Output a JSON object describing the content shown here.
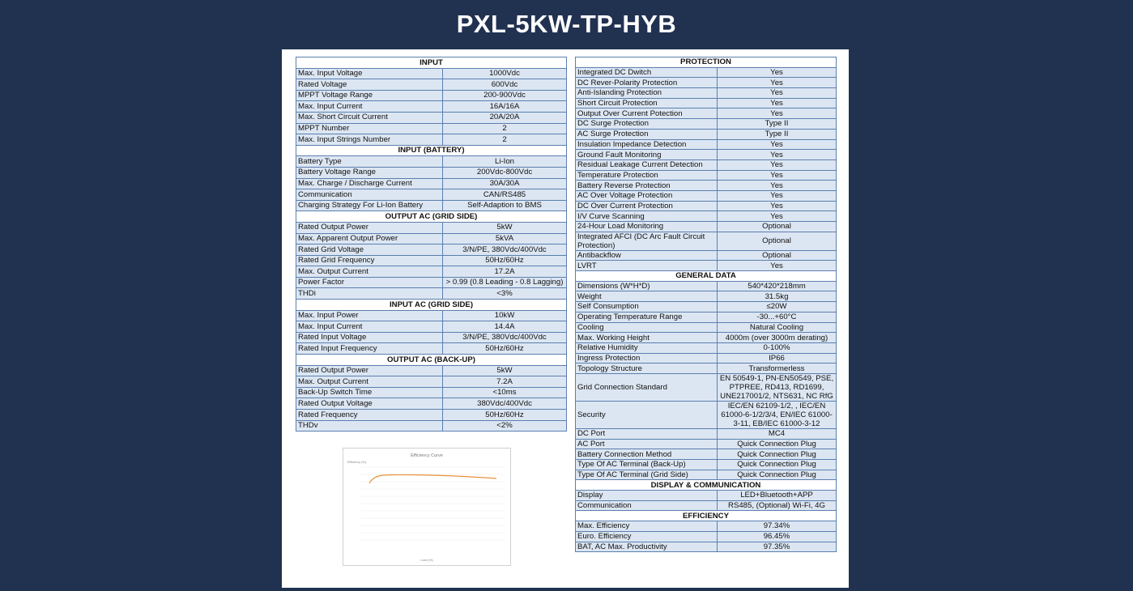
{
  "header": {
    "title": "PXL-5KW-TP-HYB"
  },
  "left_sections": [
    {
      "title": "INPUT",
      "rows": [
        [
          "Max. Input Voltage",
          "1000Vdc"
        ],
        [
          "Rated Voltage",
          "600Vdc"
        ],
        [
          "MPPT Voltage Range",
          "200-900Vdc"
        ],
        [
          "Max. Input Current",
          "16A/16A"
        ],
        [
          "Max. Short Circuit Current",
          "20A/20A"
        ],
        [
          "MPPT Number",
          "2"
        ],
        [
          "Max. Input Strings Number",
          "2"
        ]
      ]
    },
    {
      "title": "INPUT (BATTERY)",
      "rows": [
        [
          "Battery Type",
          "Li-Ion"
        ],
        [
          "Battery Voltage Range",
          "200Vdc-800Vdc"
        ],
        [
          "Max. Charge / Discharge Current",
          "30A/30A"
        ],
        [
          "Communication",
          "CAN/RS485"
        ],
        [
          "Charging Strategy For Li-Ion Battery",
          "Self-Adaption to BMS"
        ]
      ]
    },
    {
      "title": "OUTPUT AC (GRID SIDE)",
      "rows": [
        [
          "Rated Output Power",
          "5kW"
        ],
        [
          "Max. Apparent Output Power",
          "5kVA"
        ],
        [
          "Rated Grid Voltage",
          "3/N/PE, 380Vdc/400Vdc"
        ],
        [
          "Rated Grid Frequency",
          "50Hz/60Hz"
        ],
        [
          "Max. Output Current",
          "17.2A"
        ],
        [
          "Power Factor",
          "> 0.99 (0.8 Leading - 0.8 Lagging)"
        ],
        [
          "THDi",
          "<3%"
        ]
      ]
    },
    {
      "title": "INPUT AC (GRID SIDE)",
      "rows": [
        [
          "Max. Input Power",
          "10kW"
        ],
        [
          "Max. Input Current",
          "14.4A"
        ],
        [
          "Rated Input Voltage",
          "3/N/PE, 380Vdc/400Vdc"
        ],
        [
          "Rated Input Frequency",
          "50Hz/60Hz"
        ]
      ]
    },
    {
      "title": "OUTPUT AC (BACK-UP)",
      "rows": [
        [
          "Rated Output Power",
          "5kW"
        ],
        [
          "Max. Output Current",
          "7.2A"
        ],
        [
          "Back-Up Switch Time",
          "<10ms"
        ],
        [
          "Rated Output Voltage",
          "380Vdc/400Vdc"
        ],
        [
          "Rated Frequency",
          "50Hz/60Hz"
        ],
        [
          "THDv",
          "<2%"
        ]
      ]
    }
  ],
  "right_sections": [
    {
      "title": "PROTECTION",
      "rows": [
        [
          "Integrated DC Dwitch",
          "Yes"
        ],
        [
          "DC Rever-Polarity Protection",
          "Yes"
        ],
        [
          "Anti-Islanding Protection",
          "Yes"
        ],
        [
          "Short Circuit Protection",
          "Yes"
        ],
        [
          "Output Over Current Potection",
          "Yes"
        ],
        [
          "DC Surge Protection",
          "Type II"
        ],
        [
          "AC Surge Protection",
          "Type II"
        ],
        [
          "Insulation Impedance Detection",
          "Yes"
        ],
        [
          "Ground Fault Monitoring",
          "Yes"
        ],
        [
          "Residual Leakage Current Detection",
          "Yes"
        ],
        [
          "Temperature Protection",
          "Yes"
        ],
        [
          "Battery Reverse Protection",
          "Yes"
        ],
        [
          "AC Over Voltage Protection",
          "Yes"
        ],
        [
          "DC Over Current Protection",
          "Yes"
        ],
        [
          "I/V Curve Scanning",
          "Yes"
        ],
        [
          "24-Hour Load Monitoring",
          "Optional"
        ],
        [
          "Integrated AFCI (DC Arc Fault Circuit Protection)",
          "Optional"
        ],
        [
          "Antibackflow",
          "Optional"
        ],
        [
          "LVRT",
          "Yes"
        ]
      ]
    },
    {
      "title": "GENERAL DATA",
      "rows": [
        [
          "Dimensions (W*H*D)",
          "540*420*218mm"
        ],
        [
          "Weight",
          "31.5kg"
        ],
        [
          "Self Consumption",
          "≤20W"
        ],
        [
          "Operating Temperature Range",
          "-30...+60°C"
        ],
        [
          "Cooling",
          "Natural Cooling"
        ],
        [
          "Max. Working Height",
          "4000m (over 3000m derating)"
        ],
        [
          "Relative Humidity",
          "0-100%"
        ],
        [
          "Ingress Protection",
          "IP66"
        ],
        [
          "Topology Structure",
          "Transformerless"
        ],
        [
          "Grid Connection Standard",
          "EN 50549-1, PN-EN50549, PSE, PTPREE, RD413, RD1699, UNE217001/2, NTS631, NC RfG"
        ],
        [
          "Security",
          "IEC/EN 62109-1/2, , IEC/EN 61000-6-1/2/3/4, EN/IEC 61000-3-11, EB/IEC 61000-3-12"
        ],
        [
          "DC Port",
          "MC4"
        ],
        [
          "AC Port",
          "Quick Connection Plug"
        ],
        [
          "Battery Connection Method",
          "Quick Connection Plug"
        ],
        [
          "Type Of AC Terminal (Back-Up)",
          "Quick Connection Plug"
        ],
        [
          "Type Of AC Terminal (Grid Side)",
          "Quick Connection Plug"
        ]
      ]
    },
    {
      "title": "DISPLAY & COMMUNICATION",
      "rows": [
        [
          "Display",
          "LED+Bluetooth+APP"
        ],
        [
          "Communication",
          "RS485, (Optional) Wi-Fi, 4G"
        ]
      ]
    },
    {
      "title": "EFFICIENCY",
      "rows": [
        [
          "Max. Efficiency",
          "97.34%"
        ],
        [
          "Euro. Efficiency",
          "96.45%"
        ],
        [
          "BAT, AC Max. Productivity",
          "97.35%"
        ]
      ]
    }
  ],
  "efficiency_chart": {
    "title": "Efficiency Curve",
    "y_label": "Efficiency (%)",
    "x_label": "Load (%)"
  }
}
